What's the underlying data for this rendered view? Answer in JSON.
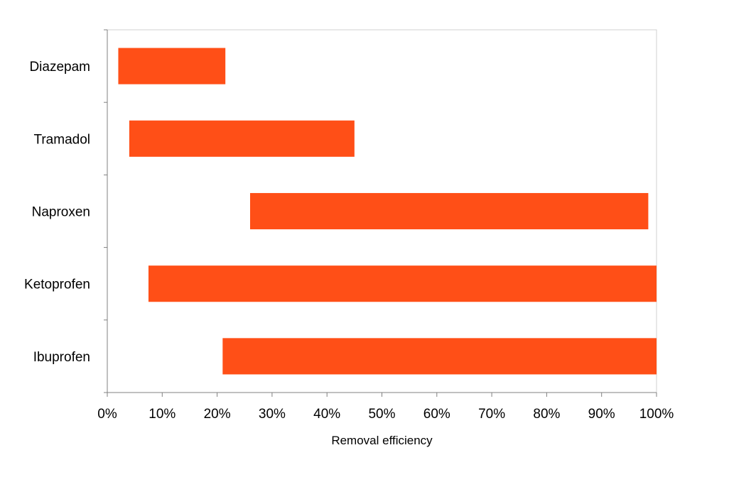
{
  "chart_data": {
    "type": "bar",
    "orientation": "horizontal",
    "floating": true,
    "categories": [
      "Diazepam",
      "Tramadol",
      "Naproxen",
      "Ketoprofen",
      "Ibuprofen"
    ],
    "series": [
      {
        "ranges": [
          [
            2,
            21.5
          ],
          [
            4,
            45
          ],
          [
            26,
            98.5
          ],
          [
            7.5,
            100
          ],
          [
            21,
            100
          ]
        ]
      }
    ],
    "xlabel": "Removal efficiency",
    "ylabel": "",
    "xlim": [
      0,
      100
    ],
    "x_ticks": [
      "0%",
      "10%",
      "20%",
      "30%",
      "40%",
      "50%",
      "60%",
      "70%",
      "80%",
      "90%",
      "100%"
    ],
    "x_tick_values": [
      0,
      10,
      20,
      30,
      40,
      50,
      60,
      70,
      80,
      90,
      100
    ],
    "grid": false,
    "legend": "none",
    "colors": {
      "bar": "#FF4F17",
      "axis": "#808080",
      "border": "#D0D0D0"
    }
  }
}
